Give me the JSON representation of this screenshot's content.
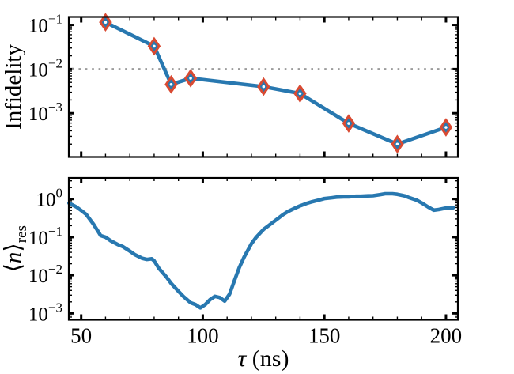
{
  "figure_title": "",
  "colors": {
    "line": "#2878b0",
    "marker_edge": "#d94a32",
    "marker_face": "#2878b0",
    "marker_dot": "#ffffff",
    "threshold": "#9b9b9b",
    "axis": "#000000"
  },
  "chart_data": [
    {
      "panel": "top",
      "type": "line",
      "yscale": "log",
      "xscale": "linear",
      "ylabel": "Infidelity",
      "ylabel_segments": [
        {
          "t": "Infidelity"
        }
      ],
      "xlim": [
        44.9,
        204.9
      ],
      "ylim_log10": [
        -3.99,
        -0.82
      ],
      "xticks": [
        50,
        100,
        150,
        200
      ],
      "xtick_labels": [
        "50",
        "100",
        "150",
        "200"
      ],
      "show_xtick_labels": false,
      "xminor_step": 10,
      "ytick_exps": [
        -1,
        -2,
        -3
      ],
      "ytick_label_base": "10",
      "marker": "diamond",
      "threshold": {
        "y": 0.01,
        "style": "dotted"
      },
      "x": [
        60,
        80,
        87,
        95,
        125,
        140,
        160,
        180,
        200
      ],
      "y": [
        0.115,
        0.033,
        0.0045,
        0.0062,
        0.004,
        0.0028,
        0.00059,
        0.0002,
        0.00048
      ]
    },
    {
      "panel": "bottom",
      "type": "line",
      "yscale": "log",
      "xscale": "linear",
      "ylabel": "⟨n⟩res",
      "ylabel_segments": [
        {
          "t": "⟨"
        },
        {
          "t": "n",
          "italic": true
        },
        {
          "t": "⟩"
        },
        {
          "t": "res",
          "sub": true
        }
      ],
      "xlabel": "τ (ns)",
      "xlabel_segments": [
        {
          "t": "τ",
          "italic": true
        },
        {
          "t": " (ns)"
        }
      ],
      "xlim": [
        44.9,
        204.9
      ],
      "ylim_log10": [
        -3.17,
        0.554
      ],
      "xticks": [
        50,
        100,
        150,
        200
      ],
      "xtick_labels": [
        "50",
        "100",
        "150",
        "200"
      ],
      "show_xtick_labels": true,
      "xminor_step": 10,
      "ytick_exps": [
        0,
        -1,
        -2,
        -3
      ],
      "ytick_label_base": "10",
      "marker": "none",
      "x": [
        45,
        48,
        50,
        52,
        55,
        57,
        58,
        60,
        62,
        65,
        67,
        70,
        72,
        75,
        77,
        79,
        80,
        82,
        85,
        87,
        90,
        92,
        95,
        97,
        99,
        101,
        103,
        105,
        107,
        109,
        111,
        113,
        115,
        117,
        120,
        122,
        125,
        127,
        130,
        133,
        135,
        138,
        140,
        143,
        145,
        148,
        150,
        153,
        155,
        158,
        160,
        163,
        165,
        168,
        170,
        173,
        175,
        178,
        180,
        183,
        185,
        188,
        190,
        193,
        195,
        197,
        200,
        203
      ],
      "y": [
        0.78,
        0.62,
        0.5,
        0.4,
        0.22,
        0.14,
        0.11,
        0.1,
        0.081,
        0.064,
        0.057,
        0.043,
        0.035,
        0.028,
        0.026,
        0.027,
        0.024,
        0.015,
        0.0091,
        0.0061,
        0.0038,
        0.0028,
        0.0019,
        0.0017,
        0.0014,
        0.0017,
        0.0023,
        0.0028,
        0.0026,
        0.0021,
        0.0032,
        0.0072,
        0.016,
        0.03,
        0.067,
        0.1,
        0.16,
        0.2,
        0.28,
        0.39,
        0.47,
        0.58,
        0.66,
        0.78,
        0.85,
        0.95,
        1.03,
        1.08,
        1.12,
        1.14,
        1.14,
        1.18,
        1.18,
        1.21,
        1.22,
        1.31,
        1.38,
        1.38,
        1.33,
        1.21,
        1.08,
        0.93,
        0.79,
        0.6,
        0.51,
        0.53,
        0.58,
        0.59
      ]
    }
  ]
}
